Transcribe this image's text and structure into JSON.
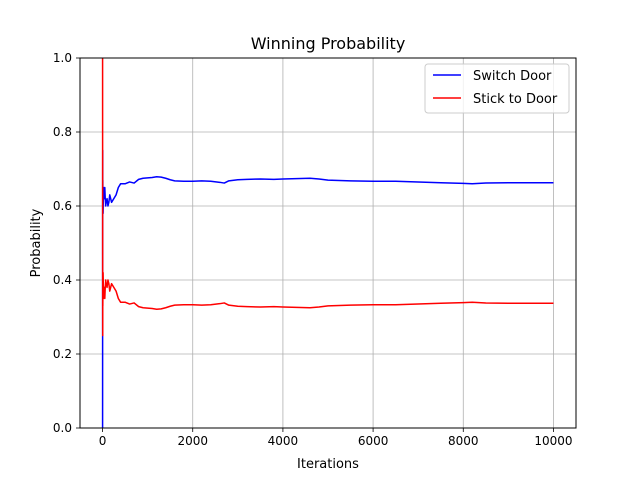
{
  "chart_data": {
    "type": "line",
    "title": "Winning Probability",
    "xlabel": "Iterations",
    "ylabel": "Probability",
    "xlim": [
      -500,
      10500
    ],
    "ylim": [
      0,
      1
    ],
    "xticks": [
      0,
      2000,
      4000,
      6000,
      8000,
      10000
    ],
    "xtick_labels": [
      "0",
      "2000",
      "4000",
      "6000",
      "8000",
      "10000"
    ],
    "yticks": [
      0,
      0.2,
      0.4,
      0.6,
      0.8,
      1.0
    ],
    "ytick_labels": [
      "0.0",
      "0.2",
      "0.4",
      "0.6",
      "0.8",
      "1.0"
    ],
    "grid": true,
    "legend_position": "top-right",
    "series": [
      {
        "name": "Switch Door",
        "color": "#0000ff",
        "x": [
          1,
          2,
          3,
          4,
          5,
          6,
          8,
          10,
          12,
          15,
          20,
          25,
          30,
          40,
          50,
          60,
          70,
          80,
          100,
          120,
          140,
          160,
          180,
          200,
          250,
          300,
          350,
          400,
          450,
          500,
          600,
          700,
          800,
          900,
          1000,
          1100,
          1200,
          1300,
          1400,
          1500,
          1600,
          1800,
          2000,
          2200,
          2400,
          2600,
          2700,
          2800,
          3000,
          3200,
          3500,
          3800,
          4000,
          4300,
          4600,
          4800,
          5000,
          5500,
          6000,
          6500,
          7000,
          7500,
          8000,
          8200,
          8500,
          9000,
          9500,
          10000
        ],
        "y": [
          0.0,
          0.5,
          0.67,
          0.75,
          0.6,
          0.67,
          0.62,
          0.6,
          0.58,
          0.6,
          0.65,
          0.64,
          0.63,
          0.62,
          0.65,
          0.62,
          0.6,
          0.61,
          0.62,
          0.6,
          0.61,
          0.63,
          0.62,
          0.61,
          0.62,
          0.63,
          0.65,
          0.66,
          0.66,
          0.66,
          0.665,
          0.662,
          0.672,
          0.675,
          0.676,
          0.677,
          0.679,
          0.678,
          0.675,
          0.671,
          0.668,
          0.667,
          0.667,
          0.668,
          0.667,
          0.664,
          0.662,
          0.668,
          0.671,
          0.672,
          0.673,
          0.672,
          0.673,
          0.674,
          0.675,
          0.673,
          0.67,
          0.668,
          0.667,
          0.667,
          0.665,
          0.663,
          0.661,
          0.66,
          0.662,
          0.663,
          0.663,
          0.663
        ]
      },
      {
        "name": "Stick to Door",
        "color": "#ff0000",
        "x": [
          1,
          2,
          3,
          4,
          5,
          6,
          8,
          10,
          12,
          15,
          20,
          25,
          30,
          40,
          50,
          60,
          70,
          80,
          100,
          120,
          140,
          160,
          180,
          200,
          250,
          300,
          350,
          400,
          450,
          500,
          600,
          700,
          800,
          900,
          1000,
          1100,
          1200,
          1300,
          1400,
          1500,
          1600,
          1800,
          2000,
          2200,
          2400,
          2600,
          2700,
          2800,
          3000,
          3200,
          3500,
          3800,
          4000,
          4300,
          4600,
          4800,
          5000,
          5500,
          6000,
          6500,
          7000,
          7500,
          8000,
          8200,
          8500,
          9000,
          9500,
          10000
        ],
        "y": [
          1.0,
          0.5,
          0.33,
          0.25,
          0.4,
          0.33,
          0.38,
          0.4,
          0.42,
          0.4,
          0.35,
          0.36,
          0.37,
          0.38,
          0.35,
          0.38,
          0.4,
          0.39,
          0.38,
          0.4,
          0.39,
          0.37,
          0.38,
          0.39,
          0.38,
          0.37,
          0.35,
          0.34,
          0.34,
          0.34,
          0.335,
          0.338,
          0.328,
          0.325,
          0.324,
          0.323,
          0.321,
          0.322,
          0.325,
          0.329,
          0.332,
          0.333,
          0.333,
          0.332,
          0.333,
          0.336,
          0.338,
          0.332,
          0.329,
          0.328,
          0.327,
          0.328,
          0.327,
          0.326,
          0.325,
          0.327,
          0.33,
          0.332,
          0.333,
          0.333,
          0.335,
          0.337,
          0.339,
          0.34,
          0.338,
          0.337,
          0.337,
          0.337
        ]
      }
    ]
  }
}
